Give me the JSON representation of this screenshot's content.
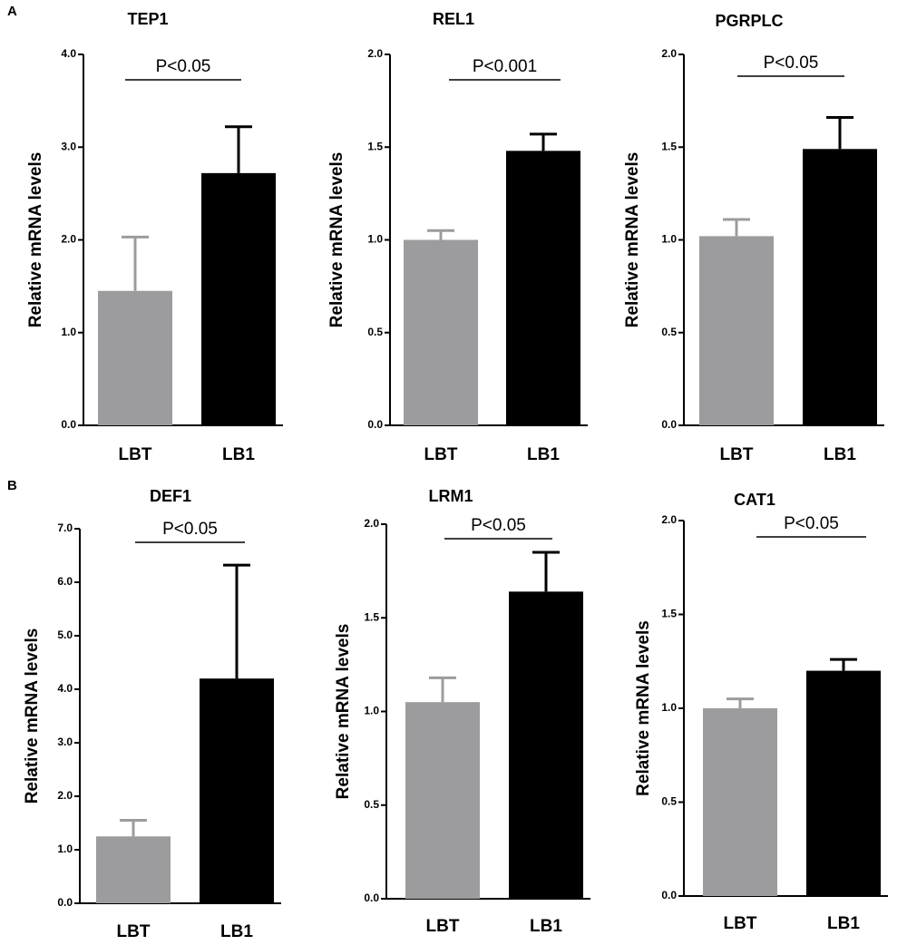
{
  "panels": {
    "a": "A",
    "b": "B"
  },
  "colors": {
    "LBT": "#9c9c9e",
    "LB1": "#000000",
    "axis": "#000000"
  },
  "ylabel": "Relative mRNA levels",
  "chart_data": [
    {
      "id": "TEP1",
      "panel": "A",
      "type": "bar",
      "title": "TEP1",
      "ylabel": "Relative mRNA levels",
      "categories": [
        "LBT",
        "LB1"
      ],
      "values": [
        1.45,
        2.72
      ],
      "errors": [
        0.58,
        0.5
      ],
      "ylim": [
        0,
        4
      ],
      "ticks": [
        "0.0",
        "1.0",
        "2.0",
        "3.0",
        "4.0"
      ],
      "significance": "P<0.05"
    },
    {
      "id": "REL1",
      "panel": "A",
      "type": "bar",
      "title": "REL1",
      "ylabel": "Relative mRNA levels",
      "categories": [
        "LBT",
        "LB1"
      ],
      "values": [
        1.0,
        1.48
      ],
      "errors": [
        0.05,
        0.09
      ],
      "ylim": [
        0,
        2
      ],
      "ticks": [
        "0.0",
        "0.5",
        "1.0",
        "1.5",
        "2.0"
      ],
      "significance": "P<0.001"
    },
    {
      "id": "PGRPLC",
      "panel": "A",
      "type": "bar",
      "title": "PGRPLC",
      "ylabel": "Relative mRNA levels",
      "categories": [
        "LBT",
        "LB1"
      ],
      "values": [
        1.02,
        1.49
      ],
      "errors": [
        0.09,
        0.17
      ],
      "ylim": [
        0,
        2
      ],
      "ticks": [
        "0.0",
        "0.5",
        "1.0",
        "1.5",
        "2.0"
      ],
      "significance": "P<0.05"
    },
    {
      "id": "DEF1",
      "panel": "B",
      "type": "bar",
      "title": "DEF1",
      "ylabel": "Relative mRNA levels",
      "categories": [
        "LBT",
        "LB1"
      ],
      "values": [
        1.25,
        4.2
      ],
      "errors": [
        0.3,
        2.12
      ],
      "ylim": [
        0,
        7
      ],
      "ticks": [
        "0.0",
        "1.0",
        "2.0",
        "3.0",
        "4.0",
        "5.0",
        "6.0",
        "7.0"
      ],
      "significance": "P<0.05"
    },
    {
      "id": "LRM1",
      "panel": "B",
      "type": "bar",
      "title": "LRM1",
      "ylabel": "Relative mRNA levels",
      "categories": [
        "LBT",
        "LB1"
      ],
      "values": [
        1.05,
        1.64
      ],
      "errors": [
        0.13,
        0.21
      ],
      "ylim": [
        0,
        2
      ],
      "ticks": [
        "0.0",
        "0.5",
        "1.0",
        "1.5",
        "2.0"
      ],
      "significance": "P<0.05"
    },
    {
      "id": "CAT1",
      "panel": "B",
      "type": "bar",
      "title": "CAT1",
      "ylabel": "Relative mRNA levels",
      "categories": [
        "LBT",
        "LB1"
      ],
      "values": [
        1.0,
        1.2
      ],
      "errors": [
        0.05,
        0.06
      ],
      "ylim": [
        0,
        2
      ],
      "ticks": [
        "0.0",
        "0.5",
        "1.0",
        "1.5",
        "2.0"
      ],
      "significance": "P<0.05"
    }
  ]
}
